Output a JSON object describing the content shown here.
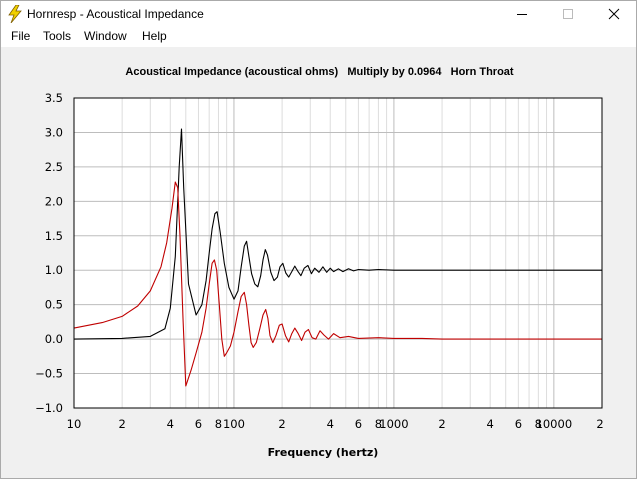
{
  "window": {
    "title": "Hornresp - Acoustical Impedance",
    "controls": {
      "minimize": "minimize-icon",
      "maximize": "maximize-icon",
      "close": "close-icon"
    }
  },
  "menu": {
    "file": "File",
    "tools": "Tools",
    "window": "Window",
    "help": "Help"
  },
  "colors": {
    "series_black": "#000000",
    "series_red": "#c00000",
    "grid": "#c8c8c8",
    "app_icon": "#f0d000"
  },
  "chart_data": {
    "type": "line",
    "title": "Acoustical Impedance (acoustical ohms)   Multiply by 0.0964   Horn Throat",
    "xlabel": "Frequency (hertz)",
    "ylabel": "",
    "xscale": "log",
    "xlim": [
      10,
      20000
    ],
    "ylim": [
      -1.0,
      3.5
    ],
    "grid": true,
    "legend": "none",
    "yticks": [
      "3.5",
      "3.0",
      "2.5",
      "2.0",
      "1.5",
      "1.0",
      "0.5",
      "0.0",
      "−0.5",
      "−1.0"
    ],
    "xticks": [
      {
        "v": 10,
        "label": "10"
      },
      {
        "v": 20,
        "label": "2"
      },
      {
        "v": 40,
        "label": "4"
      },
      {
        "v": 60,
        "label": "6"
      },
      {
        "v": 80,
        "label": "8"
      },
      {
        "v": 100,
        "label": "100"
      },
      {
        "v": 200,
        "label": "2"
      },
      {
        "v": 400,
        "label": "4"
      },
      {
        "v": 600,
        "label": "6"
      },
      {
        "v": 800,
        "label": "8"
      },
      {
        "v": 1000,
        "label": "1000"
      },
      {
        "v": 2000,
        "label": "2"
      },
      {
        "v": 4000,
        "label": "4"
      },
      {
        "v": 6000,
        "label": "6"
      },
      {
        "v": 8000,
        "label": "8"
      },
      {
        "v": 10000,
        "label": "10000"
      },
      {
        "v": 20000,
        "label": "2"
      }
    ],
    "series": [
      {
        "color": "#000000",
        "x": [
          10,
          20,
          30,
          37,
          40,
          43,
          45.5,
          47,
          48.5,
          52,
          58,
          63,
          67,
          70,
          73,
          76,
          78.5,
          82,
          87,
          93,
          100,
          106,
          111,
          116,
          120,
          124,
          129,
          135,
          141,
          147,
          152,
          157,
          162,
          170,
          178,
          187,
          194,
          202,
          211,
          220,
          230,
          240,
          250,
          262,
          275,
          290,
          305,
          320,
          340,
          360,
          380,
          400,
          420,
          450,
          480,
          520,
          560,
          600,
          700,
          800,
          1000,
          1500,
          2000,
          3000,
          5000,
          10000,
          20000
        ],
        "y": [
          0.0,
          0.01,
          0.04,
          0.15,
          0.45,
          1.2,
          2.5,
          3.05,
          2.2,
          0.8,
          0.35,
          0.5,
          0.85,
          1.25,
          1.6,
          1.82,
          1.85,
          1.55,
          1.1,
          0.75,
          0.58,
          0.7,
          1.05,
          1.35,
          1.42,
          1.2,
          0.95,
          0.8,
          0.76,
          0.92,
          1.15,
          1.3,
          1.22,
          0.97,
          0.85,
          0.9,
          1.05,
          1.1,
          0.96,
          0.9,
          0.98,
          1.06,
          0.99,
          0.92,
          1.03,
          1.07,
          0.95,
          1.03,
          0.97,
          1.05,
          0.97,
          1.03,
          0.98,
          1.02,
          0.98,
          1.02,
          0.99,
          1.01,
          1.0,
          1.01,
          1.0,
          1.0,
          1.0,
          1.0,
          1.0,
          1.0,
          1.0
        ]
      },
      {
        "color": "#c00000",
        "x": [
          10,
          15,
          20,
          25,
          30,
          35,
          38,
          41,
          43,
          44.5,
          46,
          48,
          50,
          54,
          58,
          63,
          67,
          70,
          73,
          75.5,
          78,
          81,
          84,
          87,
          90,
          95,
          100,
          106,
          111,
          116,
          120,
          124,
          128,
          132,
          138,
          145,
          152,
          158,
          163,
          168,
          175,
          183,
          192,
          200,
          210,
          220,
          230,
          240,
          252,
          265,
          278,
          292,
          308,
          325,
          345,
          365,
          390,
          420,
          460,
          520,
          600,
          800,
          1000,
          1500,
          2000,
          3000,
          5000,
          10000,
          20000
        ],
        "y": [
          0.16,
          0.24,
          0.33,
          0.48,
          0.7,
          1.05,
          1.4,
          1.9,
          2.28,
          2.2,
          1.5,
          0.3,
          -0.68,
          -0.45,
          -0.2,
          0.1,
          0.45,
          0.8,
          1.1,
          1.15,
          1.0,
          0.5,
          0.0,
          -0.25,
          -0.2,
          -0.1,
          0.1,
          0.4,
          0.62,
          0.68,
          0.5,
          0.2,
          -0.05,
          -0.12,
          -0.05,
          0.15,
          0.35,
          0.43,
          0.3,
          0.05,
          -0.05,
          0.05,
          0.2,
          0.22,
          0.05,
          -0.04,
          0.08,
          0.16,
          0.08,
          -0.02,
          0.1,
          0.14,
          0.02,
          0.0,
          0.12,
          0.06,
          0.0,
          0.08,
          0.02,
          0.04,
          0.01,
          0.02,
          0.01,
          0.01,
          0.0,
          0.0,
          0.0,
          0.0,
          0.0
        ]
      }
    ]
  }
}
